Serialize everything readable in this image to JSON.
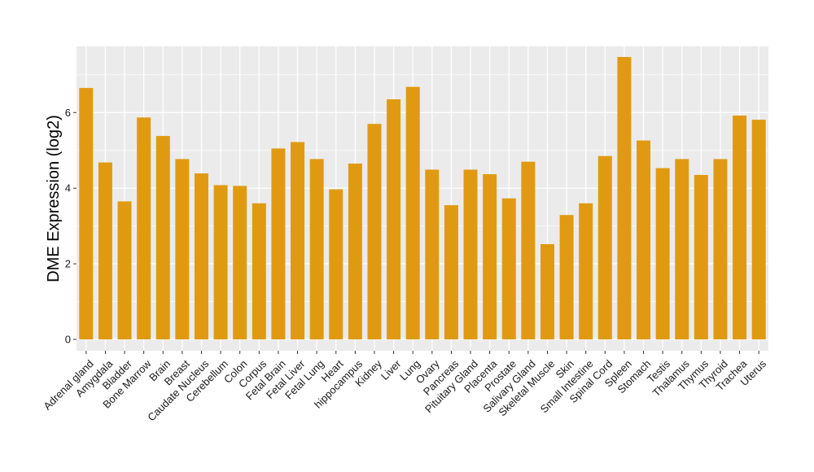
{
  "chart_data": {
    "type": "bar",
    "title": "",
    "xlabel": "",
    "ylabel": "DME Expression (log2)",
    "ylim": [
      -0.3,
      7.75
    ],
    "yticks": [
      0,
      2,
      4,
      6
    ],
    "grid": true,
    "bar_color": "#E09A12",
    "panel_color": "#EBEBEB",
    "grid_color": "#FFFFFF",
    "categories": [
      "Adrenal gland",
      "Amygdala",
      "Bladder",
      "Bone Marrow",
      "Brain",
      "Breast",
      "Caudate Nucleus",
      "Cerebellum",
      "Colon",
      "Corpus",
      "Fetal Brain",
      "Fetal Liver",
      "Fetal Lung",
      "Heart",
      "hippocampus",
      "Kidney",
      "Liver",
      "Lung",
      "Ovary",
      "Pancreas",
      "Pituitary Gland",
      "Placenta",
      "Prostate",
      "Salivary Gland",
      "Skeletal Muscle",
      "Skin",
      "Small Intestine",
      "Spinal Cord",
      "Spleen",
      "Stomach",
      "Testis",
      "Thalamus",
      "Thymus",
      "Thyroid",
      "Trachea",
      "Uterus"
    ],
    "values": [
      6.65,
      4.68,
      3.65,
      5.87,
      5.38,
      4.77,
      4.39,
      4.08,
      4.06,
      3.6,
      5.05,
      5.22,
      4.77,
      3.97,
      4.65,
      5.7,
      6.35,
      6.68,
      4.49,
      3.55,
      4.49,
      4.37,
      3.73,
      4.7,
      2.52,
      3.29,
      3.6,
      4.85,
      7.47,
      5.26,
      4.53,
      4.77,
      4.35,
      4.77,
      5.92,
      5.81
    ]
  }
}
